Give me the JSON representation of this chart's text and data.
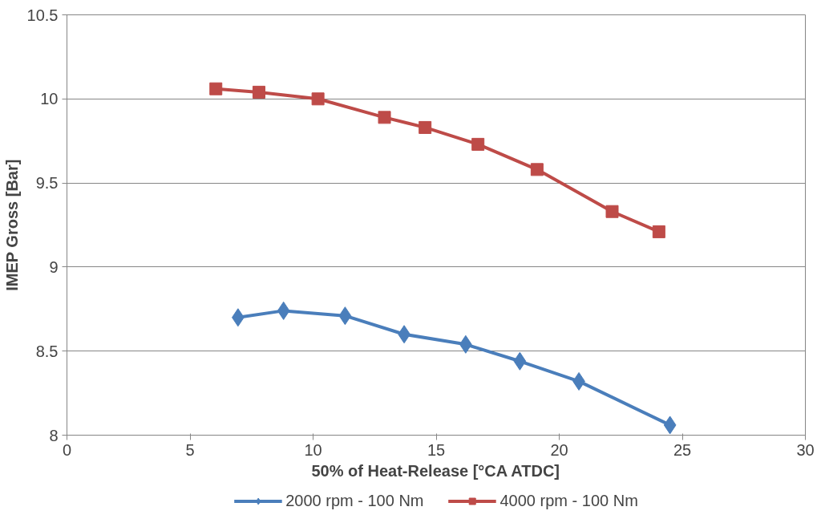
{
  "chart_data": {
    "type": "line",
    "xlabel": "50% of Heat-Release [°CA ATDC]",
    "ylabel": "IMEP Gross [Bar]",
    "xlim": [
      0,
      30
    ],
    "xticks": [
      0,
      5,
      10,
      15,
      20,
      25,
      30
    ],
    "ylim": [
      8,
      10.5
    ],
    "yticks": [
      8,
      8.5,
      9,
      9.5,
      10,
      10.5
    ],
    "grid": "y",
    "legend": "bottom",
    "series": [
      {
        "name": "2000 rpm - 100 Nm",
        "color": "#4a7ebb",
        "marker": "diamond",
        "x": [
          6.95,
          8.8,
          11.3,
          13.7,
          16.2,
          18.4,
          20.8,
          24.5
        ],
        "values": [
          8.7,
          8.74,
          8.71,
          8.6,
          8.54,
          8.44,
          8.32,
          8.06
        ]
      },
      {
        "name": "4000 rpm - 100 Nm",
        "color": "#be4b48",
        "marker": "square",
        "x": [
          6.05,
          7.8,
          10.2,
          12.9,
          14.55,
          16.7,
          19.1,
          22.15,
          24.05
        ],
        "values": [
          10.06,
          10.04,
          10.0,
          9.89,
          9.83,
          9.73,
          9.58,
          9.33,
          9.21
        ]
      }
    ]
  }
}
